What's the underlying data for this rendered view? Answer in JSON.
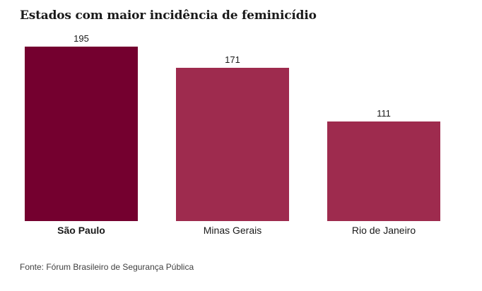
{
  "title": "Estados com maior incidência de feminicídio",
  "footer": {
    "source": "Fonte: Fórum Brasileiro de Segurança Pública"
  },
  "colors": {
    "background": "#FFFFFF",
    "highlight_bar": "#74002F",
    "default_bar": "#9E2B4E",
    "title_text": "#1A1A1A",
    "label_text": "#1A1A1A",
    "source_text": "#404040"
  },
  "chart_data": {
    "type": "bar",
    "title": "Estados com maior incidência de feminicídio",
    "categories": [
      "São Paulo",
      "Minas Gerais",
      "Rio de Janeiro"
    ],
    "values": [
      195,
      171,
      111
    ],
    "value_labels": [
      "195",
      "171",
      "111"
    ],
    "bar_colors": [
      "#74002F",
      "#9E2B4E",
      "#9E2B4E"
    ],
    "highlighted_category": "São Paulo",
    "xlabel": "",
    "ylabel": "",
    "ylim": [
      0,
      195
    ],
    "grid": false,
    "legend": false,
    "axes_shown": false,
    "source": "Fonte: Fórum Brasileiro de Segurança Pública"
  }
}
